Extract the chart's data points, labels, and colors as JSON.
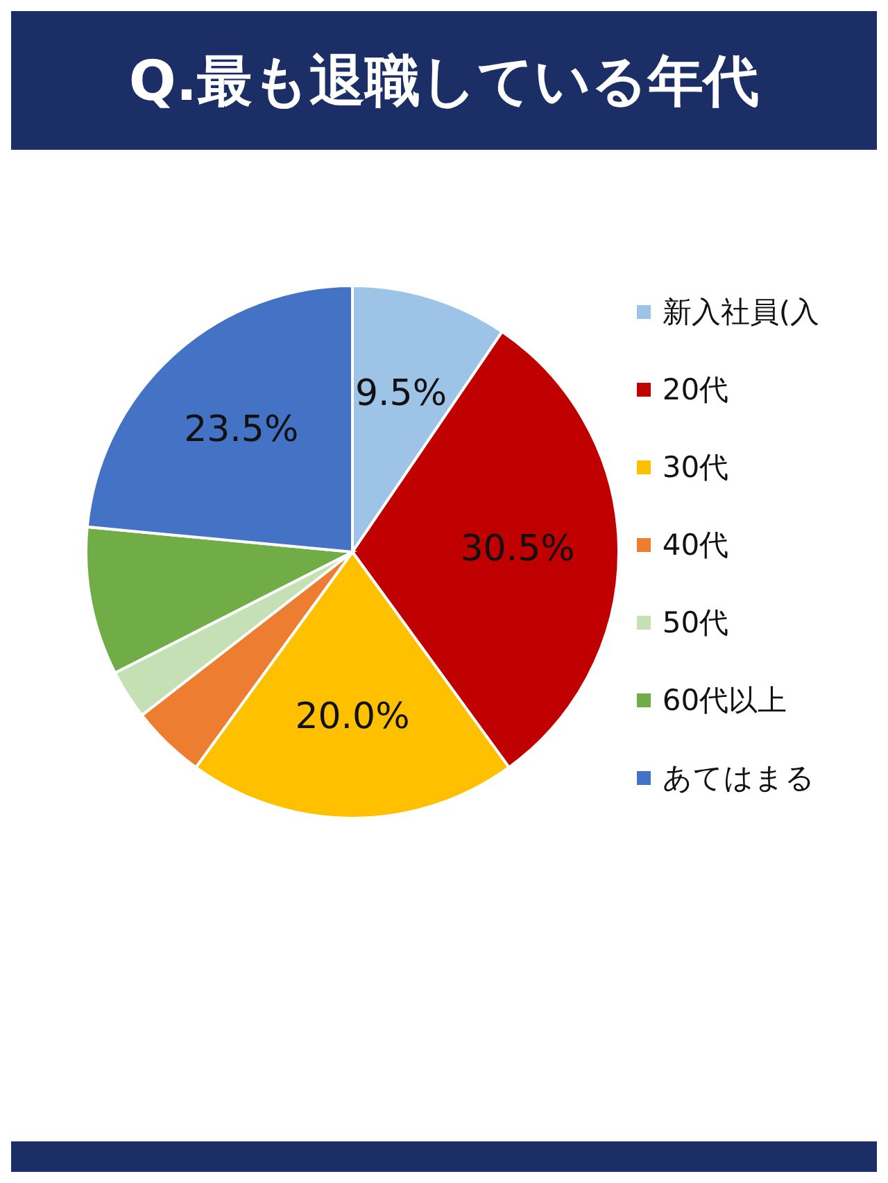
{
  "chart_data": {
    "type": "pie",
    "title": "Q.最も退職している年代",
    "categories": [
      "新入社員(入",
      "20代",
      "30代",
      "40代",
      "50代",
      "60代以上",
      "あてはまる"
    ],
    "values": [
      9.5,
      30.5,
      20.0,
      4.5,
      3.0,
      9.0,
      23.5
    ],
    "colors": [
      "#9dc3e6",
      "#c00000",
      "#ffc000",
      "#ed7d31",
      "#c5e0b4",
      "#70ad47",
      "#4472c4"
    ],
    "value_labels": [
      "9.5%",
      "30.5%",
      "20.0%",
      null,
      null,
      null,
      "23.5%"
    ],
    "legend": "right"
  }
}
